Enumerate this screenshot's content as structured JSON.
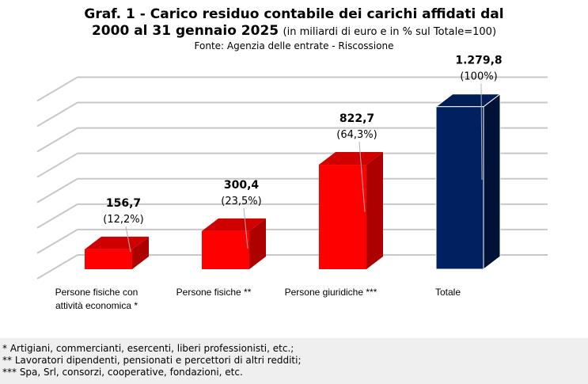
{
  "header": {
    "title_line1": "Graf. 1 - Carico residuo contabile dei carichi affidati dal",
    "title_line2_bold": "2000 al 31 gennaio 2025",
    "title_line2_note": "(in miliardi di euro e in % sul Totale=100)",
    "source": "Fonte: Agenzia delle entrate - Riscossione"
  },
  "chart_data": {
    "type": "bar",
    "style": "3d-column",
    "categories": [
      [
        "Persone fisiche con",
        "attività economica *"
      ],
      [
        "Persone fisiche **"
      ],
      [
        "Persone giuridiche ***"
      ],
      [
        "Totale"
      ]
    ],
    "values": [
      156.7,
      300.4,
      822.7,
      1279.8
    ],
    "value_labels": [
      "156,7",
      "300,4",
      "822,7",
      "1.279,8"
    ],
    "percent_labels": [
      "(12,2%)",
      "(23,5%)",
      "(64,3%)",
      "(100%)"
    ],
    "bar_colors": [
      "#ff0000",
      "#ff0000",
      "#ff0000",
      "#002060"
    ],
    "unit": "miliardi di euro",
    "ylim": [
      0,
      1400
    ],
    "gridlines": true,
    "legend": "none",
    "xlabel": "",
    "ylabel": ""
  },
  "footnotes": [
    "* Artigiani, commercianti, esercenti, liberi professionisti, etc.;",
    "** Lavoratori dipendenti, pensionati e percettori di altri redditi;",
    "*** Spa, Srl, consorzi, cooperative, fondazioni, etc."
  ]
}
